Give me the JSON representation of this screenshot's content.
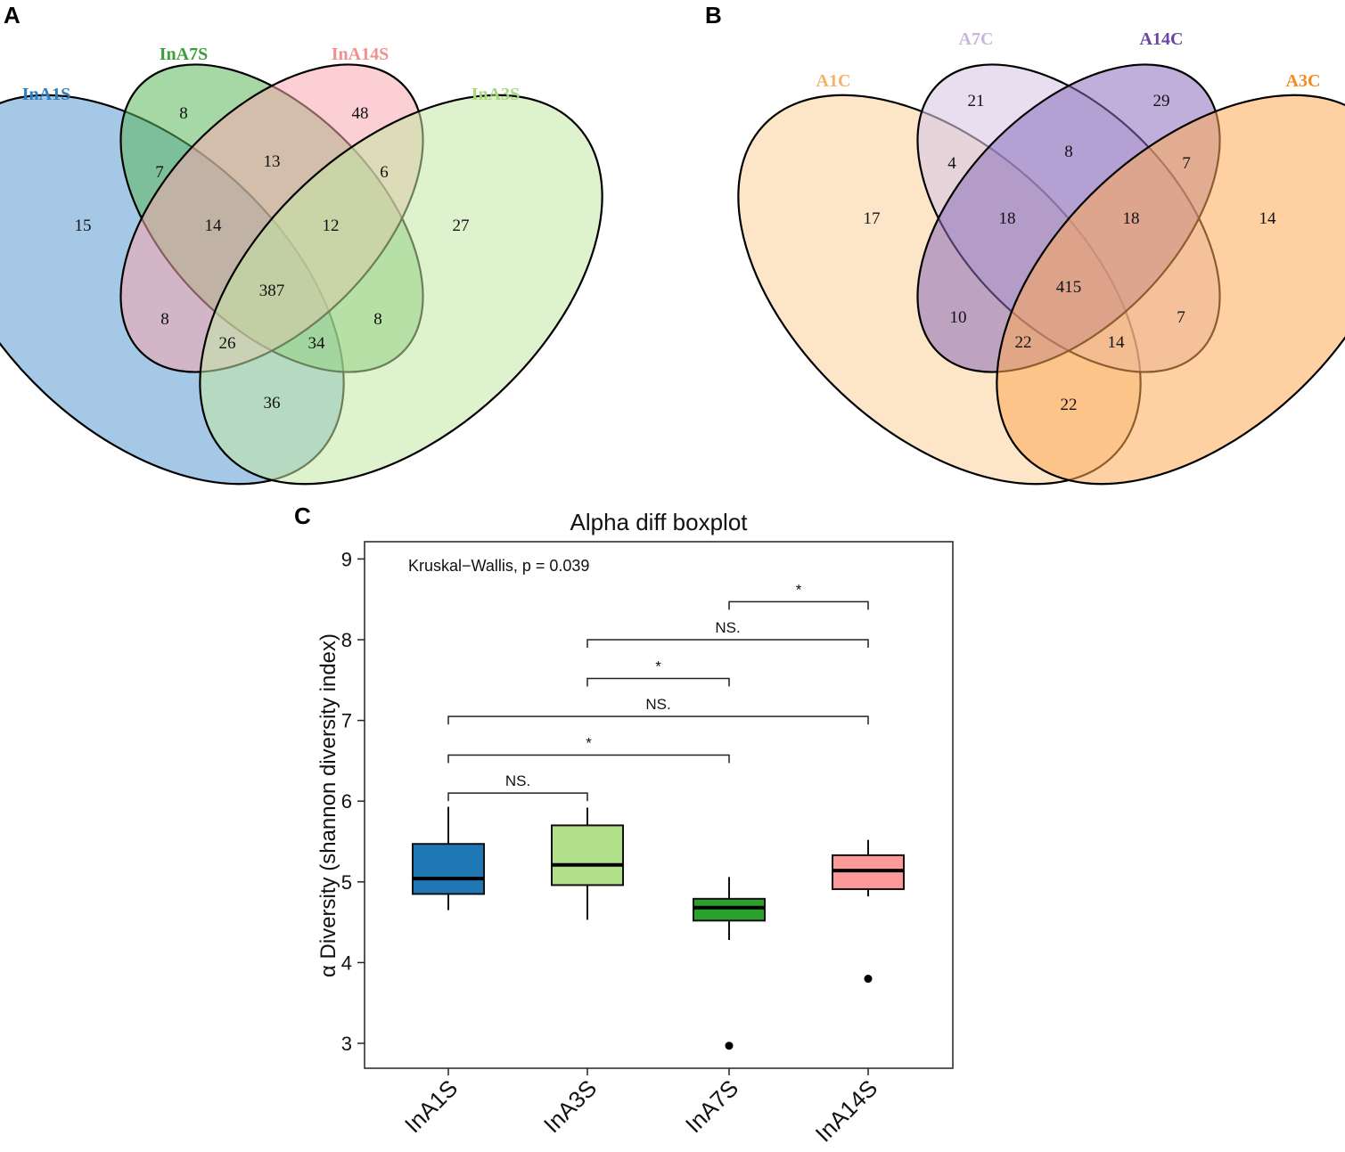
{
  "panels": {
    "a": "A",
    "b": "B",
    "c": "C"
  },
  "venn_a": {
    "sets": [
      {
        "name": "InA1S",
        "color": "#2e7ebd",
        "fill": "#5a9bd0"
      },
      {
        "name": "InA7S",
        "color": "#3aa03a",
        "fill": "#5cb85c"
      },
      {
        "name": "InA14S",
        "color": "#f09090",
        "fill": "#f7a8ae"
      },
      {
        "name": "InA3S",
        "color": "#a6d87c",
        "fill": "#c2e7a4"
      }
    ],
    "regions": [
      "8",
      "48",
      "7",
      "13",
      "6",
      "15",
      "14",
      "12",
      "27",
      "387",
      "8",
      "8",
      "26",
      "34",
      "36"
    ]
  },
  "venn_b": {
    "sets": [
      {
        "name": "A1C",
        "color": "#f5b16a",
        "fill": "#fcd3a3"
      },
      {
        "name": "A7C",
        "color": "#c9b7da",
        "fill": "#d8c8e6"
      },
      {
        "name": "A14C",
        "color": "#6b44a3",
        "fill": "#8a6dbb"
      },
      {
        "name": "A3C",
        "color": "#f38b1e",
        "fill": "#fdaa55"
      }
    ],
    "regions": [
      "21",
      "29",
      "4",
      "8",
      "7",
      "17",
      "18",
      "18",
      "14",
      "415",
      "10",
      "7",
      "22",
      "14",
      "22"
    ]
  },
  "chart_data": {
    "type": "box",
    "title": "Alpha diff boxplot",
    "ylabel": "α Diversity (shannon diversity index)",
    "ylim": [
      2.7,
      9.2
    ],
    "yticks": [
      "3",
      "4",
      "5",
      "6",
      "7",
      "8",
      "9"
    ],
    "annotation": "Kruskal−Wallis, p = 0.039",
    "categories": [
      "InA1S",
      "InA3S",
      "InA7S",
      "InA14S"
    ],
    "boxes": [
      {
        "name": "InA1S",
        "color": "#1f77b4",
        "min": 4.65,
        "q1": 4.85,
        "median": 5.04,
        "q3": 5.47,
        "max": 5.93,
        "outliers": []
      },
      {
        "name": "InA3S",
        "color": "#b2df8a",
        "min": 4.53,
        "q1": 4.96,
        "median": 5.21,
        "q3": 5.7,
        "max": 5.92,
        "outliers": []
      },
      {
        "name": "InA7S",
        "color": "#2ca02c",
        "min": 4.28,
        "q1": 4.52,
        "median": 4.68,
        "q3": 4.79,
        "max": 5.06,
        "outliers": [
          2.97
        ]
      },
      {
        "name": "InA14S",
        "color": "#fb9a99",
        "min": 4.82,
        "q1": 4.91,
        "median": 5.14,
        "q3": 5.33,
        "max": 5.52,
        "outliers": [
          3.8
        ]
      }
    ],
    "comparisons": [
      {
        "from": 0,
        "to": 1,
        "y": 6.1,
        "label": "NS."
      },
      {
        "from": 0,
        "to": 2,
        "y": 6.57,
        "label": "*"
      },
      {
        "from": 0,
        "to": 3,
        "y": 7.05,
        "label": "NS."
      },
      {
        "from": 1,
        "to": 2,
        "y": 7.52,
        "label": "*"
      },
      {
        "from": 1,
        "to": 3,
        "y": 8.0,
        "label": "NS."
      },
      {
        "from": 2,
        "to": 3,
        "y": 8.47,
        "label": "*"
      }
    ]
  }
}
